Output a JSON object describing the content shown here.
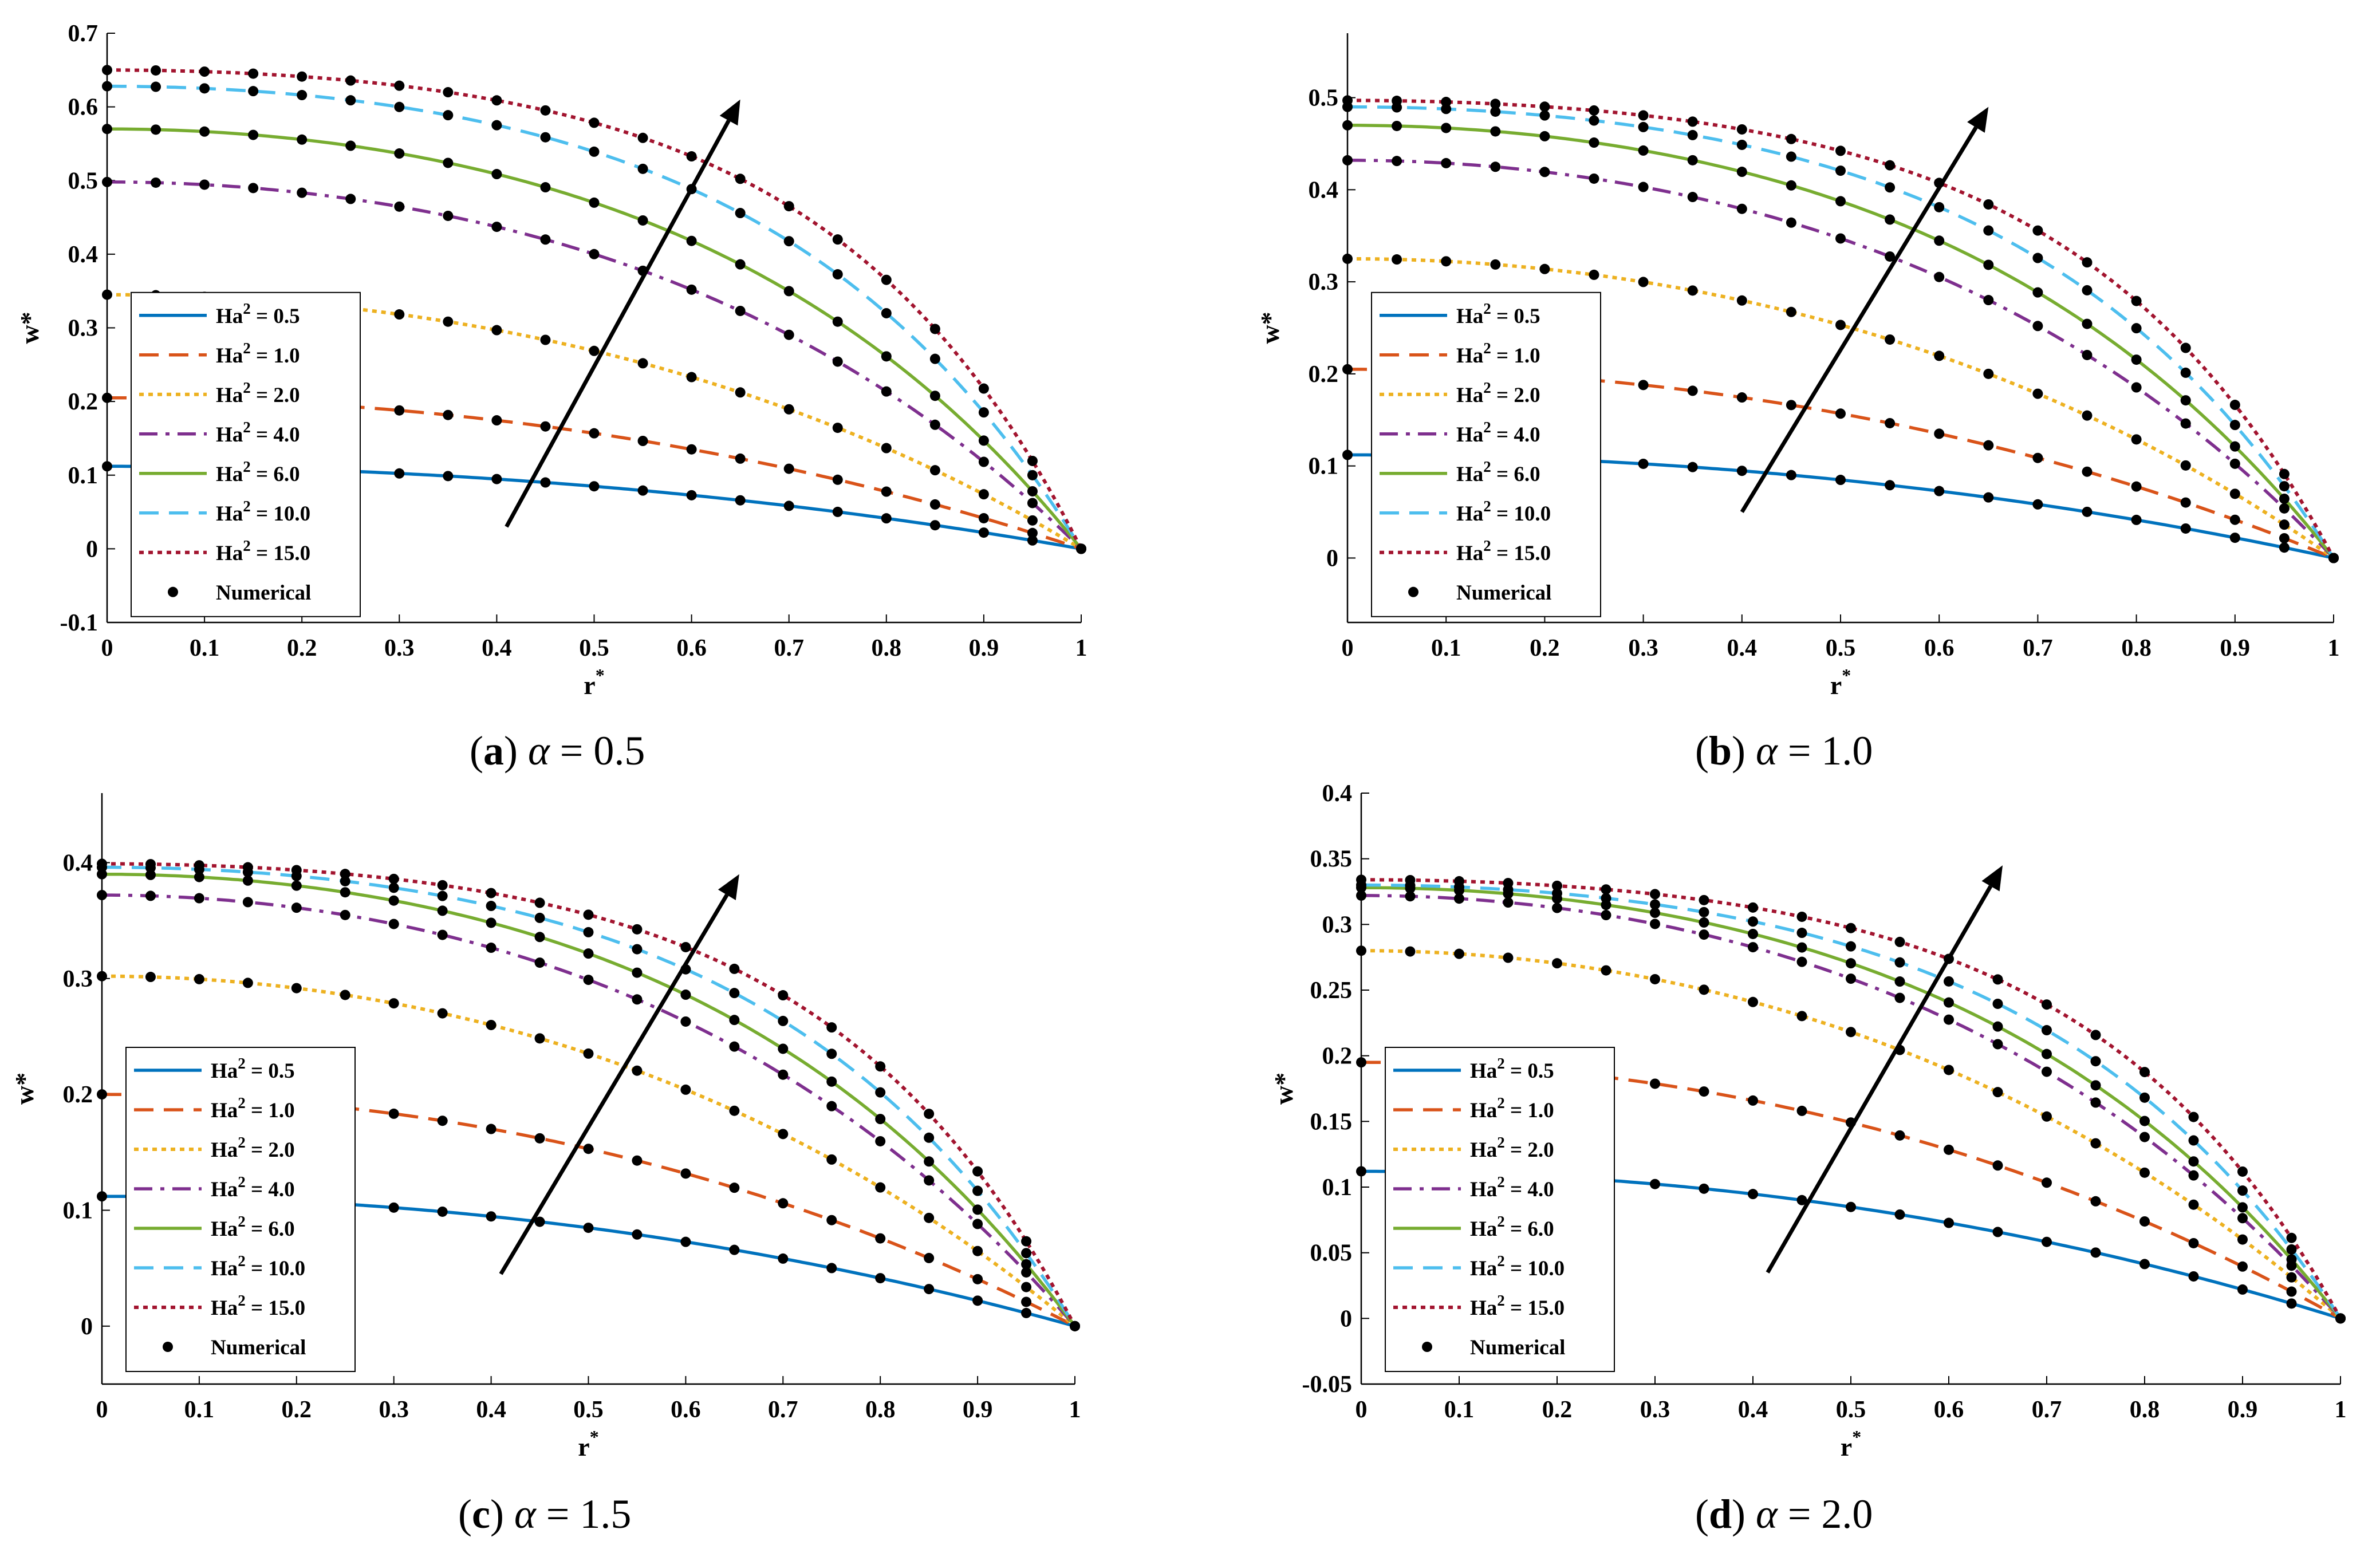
{
  "figure": {
    "colors": {
      "Ha2_0_5": "#0072BD",
      "Ha2_1_0": "#D95319",
      "Ha2_2_0": "#EDB120",
      "Ha2_4_0": "#7E2F8E",
      "Ha2_6_0": "#77AC30",
      "Ha2_10_0": "#4DBEEE",
      "Ha2_15_0": "#A2142F",
      "numerical": "#000000",
      "arrow": "#000000"
    }
  },
  "chart_data": [
    {
      "type": "line",
      "caption": {
        "letter": "a",
        "parameter": "α",
        "value": "= 0.5"
      },
      "xlabel": "r",
      "xlabel_sup": "*",
      "ylabel": "w*",
      "xlim": [
        0,
        1
      ],
      "ylim": [
        -0.1,
        0.7
      ],
      "xticks": [
        "0",
        "0.1",
        "0.2",
        "0.3",
        "0.4",
        "0.5",
        "0.6",
        "0.7",
        "0.8",
        "0.9",
        "1"
      ],
      "yticks": [
        "-0.1",
        "0",
        "0.1",
        "0.2",
        "0.3",
        "0.4",
        "0.5",
        "0.6",
        "0.7"
      ],
      "yticks_values": [
        -0.1,
        0,
        0.1,
        0.2,
        0.3,
        0.4,
        0.5,
        0.6,
        0.7
      ],
      "legend_position": "left-middle",
      "w0": [
        0.112,
        0.205,
        0.345,
        0.498,
        0.57,
        0.628,
        0.65
      ],
      "arrow": {
        "from": [
          0.41,
          0.03
        ],
        "to": [
          0.65,
          0.61
        ]
      }
    },
    {
      "type": "line",
      "caption": {
        "letter": "b",
        "parameter": "α",
        "value": "= 1.0"
      },
      "xlabel": "r",
      "xlabel_sup": "*",
      "ylabel": "w*",
      "xlim": [
        0,
        1
      ],
      "ylim": [
        -0.07,
        0.57
      ],
      "xticks": [
        "0",
        "0.1",
        "0.2",
        "0.3",
        "0.4",
        "0.5",
        "0.6",
        "0.7",
        "0.8",
        "0.9",
        "1"
      ],
      "yticks": [
        "0",
        "0.1",
        "0.2",
        "0.3",
        "0.4",
        "0.5"
      ],
      "yticks_values": [
        0,
        0.1,
        0.2,
        0.3,
        0.4,
        0.5
      ],
      "legend_position": "left-middle",
      "w0": [
        0.112,
        0.205,
        0.325,
        0.432,
        0.47,
        0.49,
        0.497
      ],
      "arrow": {
        "from": [
          0.4,
          0.05
        ],
        "to": [
          0.65,
          0.49
        ]
      }
    },
    {
      "type": "line",
      "caption": {
        "letter": "c",
        "parameter": "α",
        "value": "= 1.5"
      },
      "xlabel": "r",
      "xlabel_sup": "*",
      "ylabel": "w*",
      "xlim": [
        0,
        1
      ],
      "ylim": [
        -0.05,
        0.46
      ],
      "xticks": [
        "0",
        "0.1",
        "0.2",
        "0.3",
        "0.4",
        "0.5",
        "0.6",
        "0.7",
        "0.8",
        "0.9",
        "1"
      ],
      "yticks": [
        "0",
        "0.1",
        "0.2",
        "0.3",
        "0.4"
      ],
      "yticks_values": [
        0,
        0.1,
        0.2,
        0.3,
        0.4
      ],
      "legend_position": "left-bottom",
      "w0": [
        0.112,
        0.2,
        0.302,
        0.372,
        0.39,
        0.396,
        0.399
      ],
      "arrow": {
        "from": [
          0.41,
          0.045
        ],
        "to": [
          0.655,
          0.39
        ]
      }
    },
    {
      "type": "line",
      "caption": {
        "letter": "d",
        "parameter": "α",
        "value": "= 2.0"
      },
      "xlabel": "r",
      "xlabel_sup": "*",
      "ylabel": "w*",
      "xlim": [
        0,
        1
      ],
      "ylim": [
        -0.05,
        0.4
      ],
      "xticks": [
        "0",
        "0.1",
        "0.2",
        "0.3",
        "0.4",
        "0.5",
        "0.6",
        "0.7",
        "0.8",
        "0.9",
        "1"
      ],
      "yticks": [
        "-0.05",
        "0",
        "0.05",
        "0.1",
        "0.15",
        "0.2",
        "0.25",
        "0.3",
        "0.35",
        "0.4"
      ],
      "yticks_values": [
        -0.05,
        0,
        0.05,
        0.1,
        0.15,
        0.2,
        0.25,
        0.3,
        0.35,
        0.4
      ],
      "legend_position": "left-bottom",
      "w0": [
        0.112,
        0.195,
        0.28,
        0.322,
        0.328,
        0.33,
        0.334
      ],
      "arrow": {
        "from": [
          0.415,
          0.035
        ],
        "to": [
          0.655,
          0.345
        ]
      }
    }
  ],
  "series": [
    {
      "label": "Ha",
      "sup": "2",
      "value": " = 0.5",
      "color_key": "Ha2_0_5",
      "dash": "solid"
    },
    {
      "label": "Ha",
      "sup": "2",
      "value": " = 1.0",
      "color_key": "Ha2_1_0",
      "dash": "dash"
    },
    {
      "label": "Ha",
      "sup": "2",
      "value": " = 2.0",
      "color_key": "Ha2_2_0",
      "dash": "dot"
    },
    {
      "label": "Ha",
      "sup": "2",
      "value": " = 4.0",
      "color_key": "Ha2_4_0",
      "dash": "dashdot"
    },
    {
      "label": "Ha",
      "sup": "2",
      "value": " = 6.0",
      "color_key": "Ha2_6_0",
      "dash": "solid"
    },
    {
      "label": "Ha",
      "sup": "2",
      "value": " = 10.0",
      "color_key": "Ha2_10_0",
      "dash": "dash"
    },
    {
      "label": "Ha",
      "sup": "2",
      "value": " = 15.0",
      "color_key": "Ha2_15_0",
      "dash": "dot"
    }
  ],
  "numerical_label": "Numerical",
  "ha2_values": [
    0.5,
    1.0,
    2.0,
    4.0,
    6.0,
    10.0,
    15.0
  ],
  "numerical_r": [
    0,
    0.05,
    0.1,
    0.15,
    0.2,
    0.25,
    0.3,
    0.35,
    0.4,
    0.45,
    0.5,
    0.55,
    0.6,
    0.65,
    0.7,
    0.75,
    0.8,
    0.85,
    0.9,
    0.95,
    1.0
  ]
}
